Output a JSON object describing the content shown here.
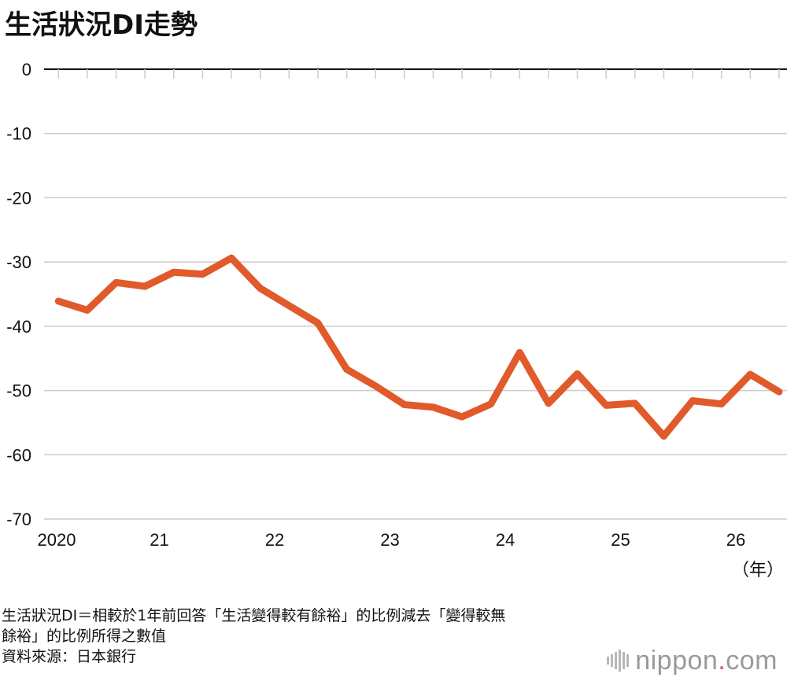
{
  "title": "生活狀況DI走勢",
  "notes": {
    "line1": "生活狀況DI＝相較於1年前回答「生活變得較有餘裕」的比例減去「變得較無",
    "line2": "餘裕」的比例所得之數值",
    "line3": "資料來源：日本銀行"
  },
  "logo": {
    "name": "nippon",
    "dot": ".",
    "suffix": "com",
    "dot_color": "#d9534f"
  },
  "colors": {
    "line": "#e05a2b",
    "grid": "#cccccc",
    "axis": "#111111"
  },
  "chart_data": {
    "type": "line",
    "title": "生活狀況DI走勢",
    "xlabel": "",
    "ylabel": "",
    "x_unit": "（年）",
    "ylim": [
      -70,
      0
    ],
    "yticks": [
      0,
      -10,
      -20,
      -30,
      -40,
      -50,
      -60,
      -70
    ],
    "ytick_labels": [
      "0",
      "-10",
      "-20",
      "-30",
      "-40",
      "-50",
      "-60",
      "-70"
    ],
    "xticks": [
      2020,
      2021,
      2022,
      2023,
      2024,
      2025,
      2026
    ],
    "xtick_labels": [
      "2020",
      "21",
      "22",
      "23",
      "24",
      "25",
      "26"
    ],
    "xlim": [
      2020,
      2026.375
    ],
    "grid": true,
    "series": [
      {
        "x": [
          2020.125,
          2020.375,
          2020.625,
          2020.875,
          2021.125,
          2021.375,
          2021.625,
          2021.875,
          2022.125,
          2022.375,
          2022.625,
          2022.875,
          2023.125,
          2023.375,
          2023.625,
          2023.875,
          2024.125,
          2024.375,
          2024.625,
          2024.875,
          2025.125,
          2025.375,
          2025.625,
          2025.875,
          2026.125,
          2026.375
        ],
        "values": [
          -36.1,
          -37.5,
          -33.2,
          -33.8,
          -31.6,
          -31.9,
          -29.4,
          -34.1,
          -36.8,
          -39.5,
          -46.7,
          -49.3,
          -52.2,
          -52.6,
          -54.1,
          -52.1,
          -44.1,
          -52.0,
          -47.4,
          -52.3,
          -52.0,
          -57.1,
          -51.6,
          -52.1,
          -47.5,
          -50.2
        ],
        "color": "#e05a2b"
      }
    ]
  }
}
